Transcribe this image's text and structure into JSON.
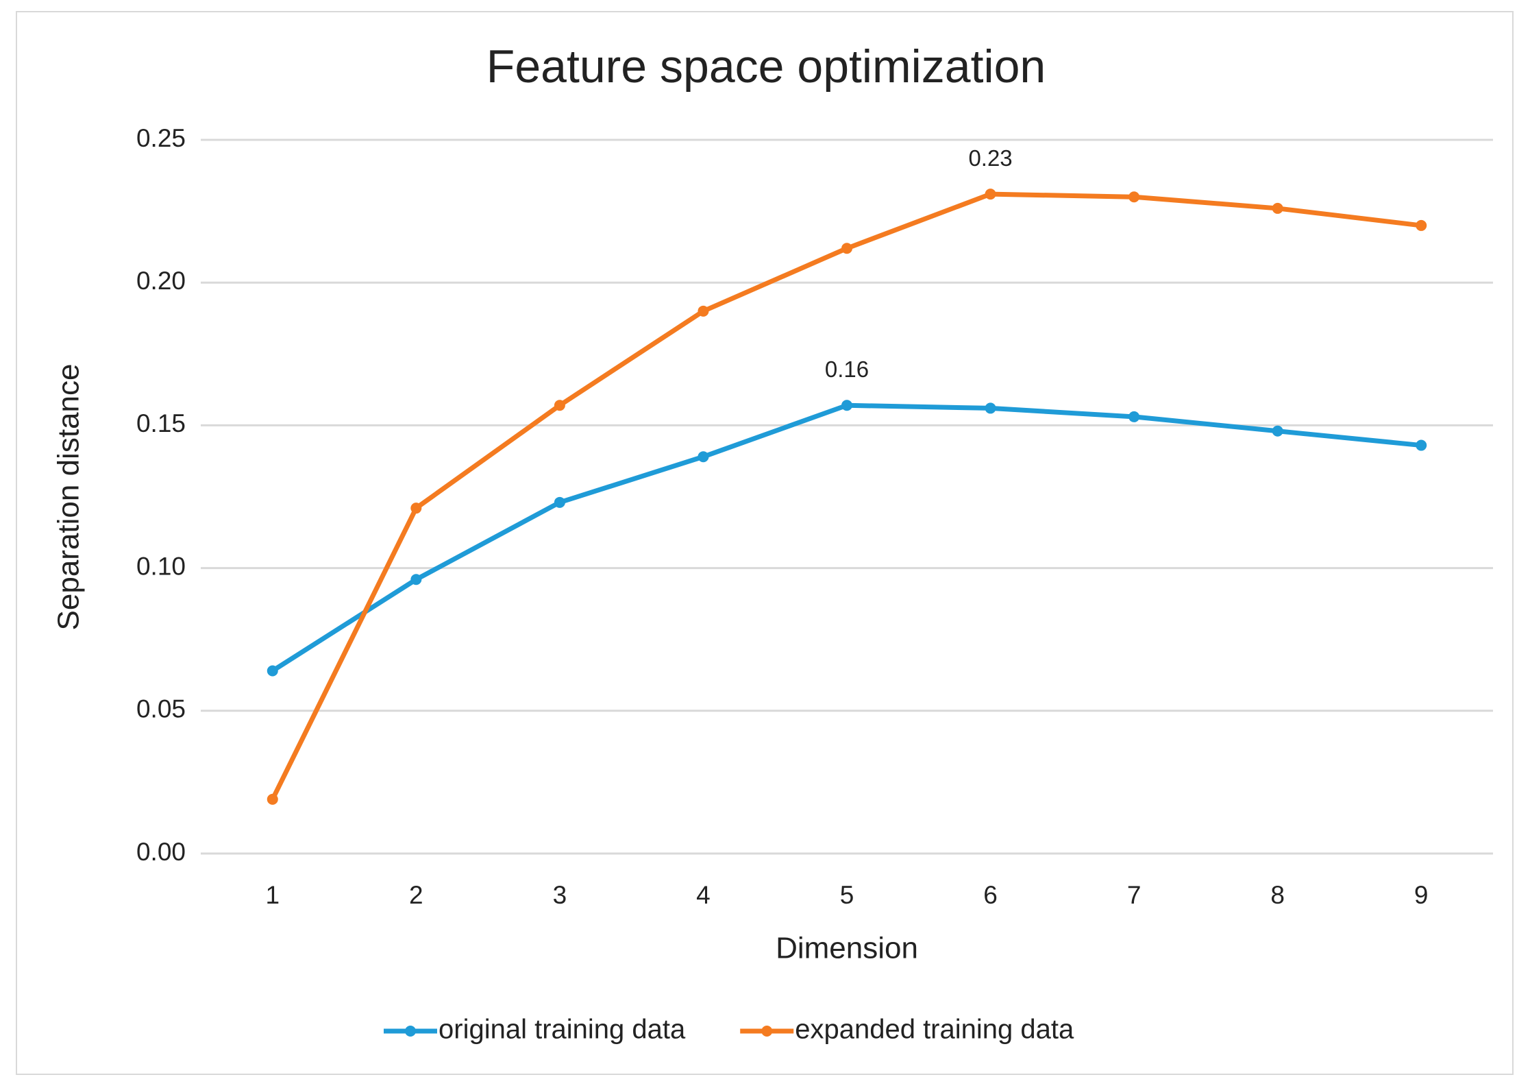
{
  "chart_data": {
    "type": "line",
    "title": "Feature space optimization",
    "x_label": "Dimension",
    "y_label": "Separation distance",
    "categories": [
      "1",
      "2",
      "3",
      "4",
      "5",
      "6",
      "7",
      "8",
      "9"
    ],
    "series": [
      {
        "name": "original training data",
        "color": "#1f9bd7",
        "values": [
          0.064,
          0.096,
          0.123,
          0.139,
          0.157,
          0.156,
          0.153,
          0.148,
          0.143
        ],
        "value_labels": [
          null,
          null,
          null,
          null,
          "0.16",
          null,
          null,
          null,
          null
        ]
      },
      {
        "name": "expanded training data",
        "color": "#f47b20",
        "values": [
          0.019,
          0.121,
          0.157,
          0.19,
          0.212,
          0.231,
          0.23,
          0.226,
          0.22
        ],
        "value_labels": [
          null,
          null,
          null,
          null,
          null,
          "0.23",
          null,
          null,
          null
        ]
      }
    ],
    "ylim": [
      0,
      0.25
    ],
    "yticks": [
      {
        "value": 0,
        "label": "0.00"
      },
      0.05,
      {
        "value": 0.1,
        "label": "0.10"
      },
      0.15,
      {
        "value": 0.2,
        "label": "0.20"
      },
      0.25
    ],
    "grid": true,
    "legend": "bottom"
  }
}
